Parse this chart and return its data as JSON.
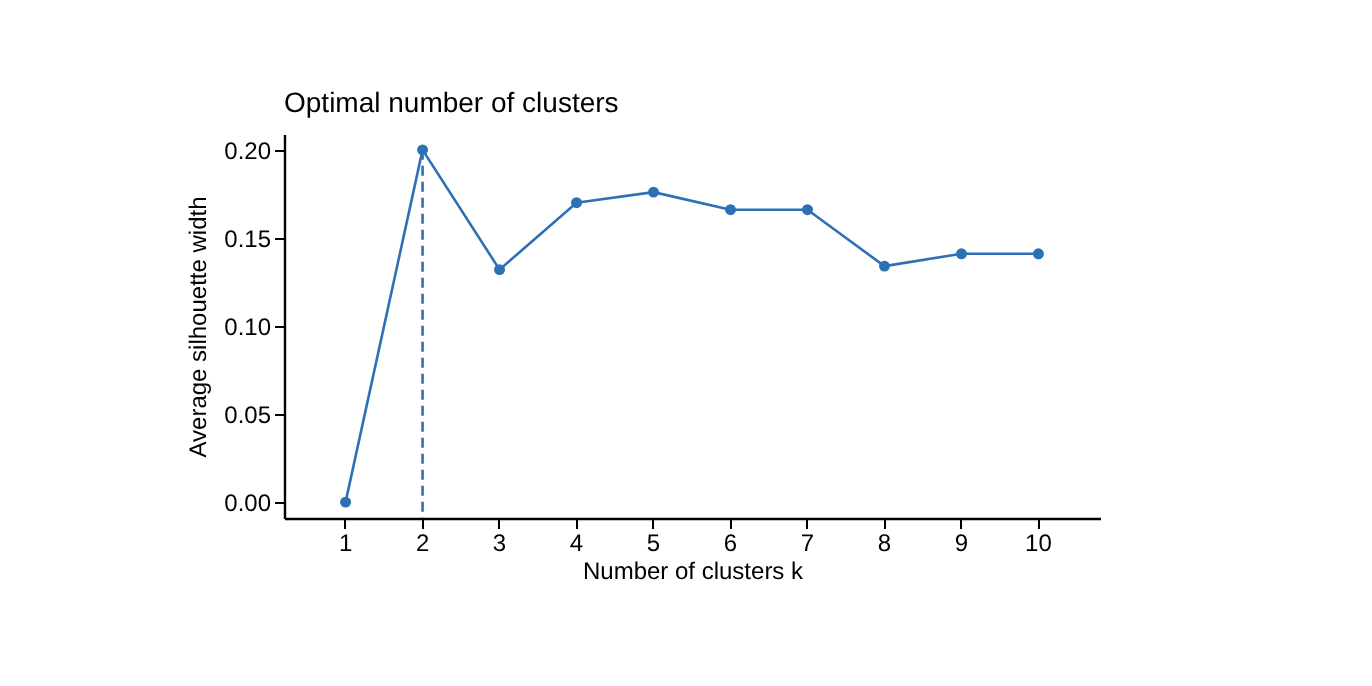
{
  "chart_data": {
    "type": "line",
    "title": "Optimal number of clusters",
    "xlabel": "Number of clusters k",
    "ylabel": "Average silhouette width",
    "categories": [
      "1",
      "2",
      "3",
      "4",
      "5",
      "6",
      "7",
      "8",
      "9",
      "10"
    ],
    "series": [
      {
        "color": "#2e70b5",
        "values": [
          0.0,
          0.2,
          0.132,
          0.17,
          0.176,
          0.166,
          0.166,
          0.134,
          0.141,
          0.141
        ]
      }
    ],
    "ylim": [
      -0.009,
      0.209
    ],
    "yticks": [
      {
        "value": 0,
        "label": "0.00"
      },
      0.05,
      {
        "value": 0.1,
        "label": "0.10"
      },
      0.15,
      {
        "value": 0.2,
        "label": "0.20"
      }
    ],
    "ref_lines": [
      {
        "axis": "x",
        "value": "2",
        "color": "#2e70b5",
        "line_style": "dashed"
      }
    ],
    "marker": "circle",
    "line_style": "solid",
    "grid": false
  }
}
